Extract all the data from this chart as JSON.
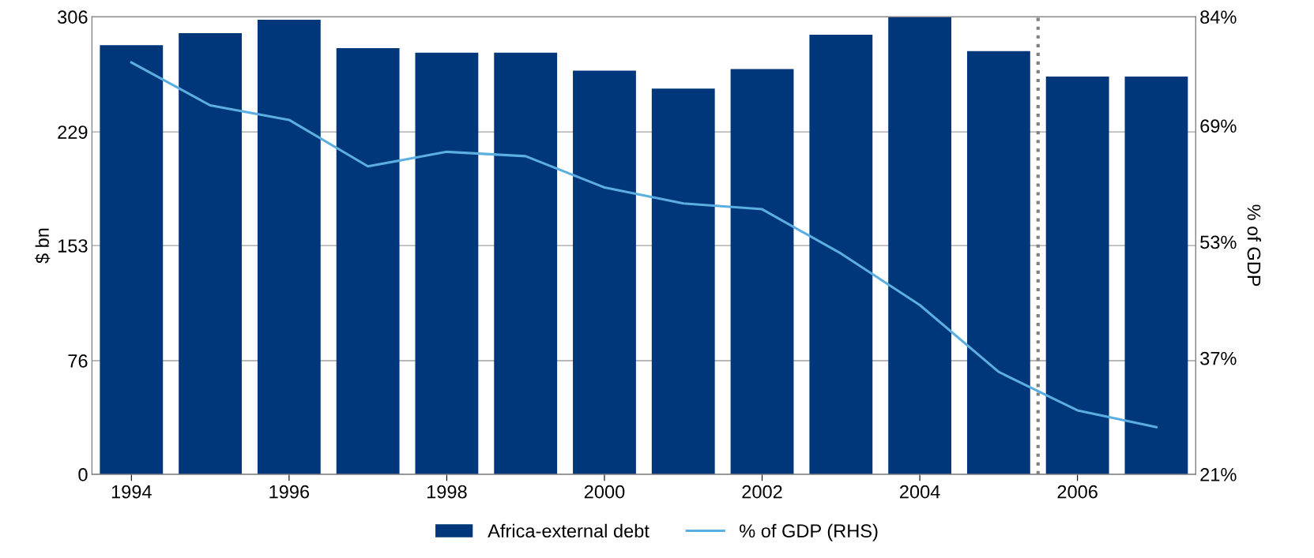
{
  "chart_data": {
    "type": "bar",
    "x": [
      1994,
      1995,
      1996,
      1997,
      1998,
      1999,
      2000,
      2001,
      2002,
      2003,
      2004,
      2005,
      2006,
      2007
    ],
    "series": [
      {
        "name": "Africa-external debt",
        "color": "#00367a",
        "values": [
          287,
          295,
          304,
          285,
          282,
          282,
          270,
          258,
          271,
          294,
          306,
          283,
          266,
          266
        ]
      },
      {
        "name": "% of GDP (RHS)",
        "type": "line",
        "axis": "y2",
        "color": "#5aaee0",
        "values": [
          77.7,
          71.8,
          69.8,
          63.4,
          65.4,
          64.8,
          60.5,
          58.3,
          57.5,
          51.4,
          44.3,
          35.1,
          29.8,
          27.5
        ]
      }
    ],
    "ylabel": "$ bn",
    "y2label": "% of GDP",
    "xlim": [
      1993.5,
      2007.5
    ],
    "xticks": [
      1994,
      1996,
      1998,
      2000,
      2002,
      2004,
      2006
    ],
    "ylim": [
      0,
      306
    ],
    "yticks": [
      0,
      76,
      153,
      229,
      306
    ],
    "y2lim": [
      21,
      84
    ],
    "y2ticks": [
      {
        "value": 21,
        "label": "21%"
      },
      {
        "value": 37,
        "label": "37%"
      },
      {
        "value": 53,
        "label": "53%"
      },
      {
        "value": 69,
        "label": "69%"
      },
      {
        "value": 84,
        "label": "84%"
      }
    ],
    "ref_lines": [
      {
        "axis": "x",
        "value": 2005.5,
        "color": "#808080",
        "line_style": "dotted"
      }
    ],
    "grid": "y",
    "legend": "bottom",
    "marker": "none",
    "line_style": "solid"
  }
}
